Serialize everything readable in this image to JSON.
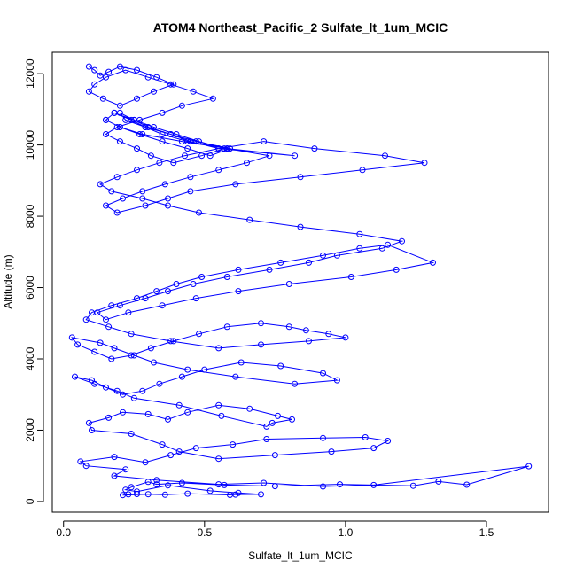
{
  "chart_data": {
    "type": "scatter",
    "title": "ATOM4 Northeast_Pacific_2 Sulfate_lt_1um_MCIC",
    "xlabel": "Sulfate_lt_1um_MCIC",
    "ylabel": "Altitude (m)",
    "xlim": [
      -0.04,
      1.72
    ],
    "ylim": [
      -300,
      12600
    ],
    "xticks": [
      0.0,
      0.5,
      1.0,
      1.5
    ],
    "xtick_labels": [
      "0.0",
      "0.5",
      "1.0",
      "1.5"
    ],
    "yticks": [
      0,
      2000,
      4000,
      6000,
      8000,
      10000,
      12000
    ],
    "ytick_labels": [
      "0",
      "2000",
      "4000",
      "6000",
      "8000",
      "10000",
      "12000"
    ],
    "grid": false,
    "legend": "none",
    "color": "#0000ff",
    "series": [
      {
        "x": [
          0.23,
          0.26,
          0.21,
          0.3,
          0.36,
          0.44,
          0.59,
          0.61,
          0.7,
          0.62,
          0.52,
          0.37,
          0.26,
          0.22,
          0.24,
          0.3,
          0.33,
          0.42,
          0.57,
          0.75,
          0.98,
          1.24,
          1.33,
          1.43,
          1.65,
          1.1,
          0.92,
          0.71,
          0.55,
          0.33,
          0.18,
          0.22,
          0.08,
          0.06,
          0.18,
          0.29,
          0.38,
          0.47,
          0.6,
          0.72,
          0.92,
          1.07,
          1.15,
          1.1,
          0.95,
          0.75,
          0.55,
          0.41,
          0.35,
          0.24,
          0.1,
          0.09,
          0.16,
          0.21,
          0.3,
          0.37,
          0.44,
          0.55,
          0.66,
          0.76,
          0.81,
          0.74,
          0.72,
          0.56,
          0.41,
          0.25,
          0.19,
          0.11,
          0.04,
          0.1,
          0.15,
          0.21,
          0.28,
          0.34,
          0.42,
          0.5,
          0.63,
          0.77,
          0.92,
          0.97,
          0.82,
          0.61,
          0.44,
          0.32,
          0.25,
          0.18,
          0.13,
          0.03,
          0.05,
          0.11,
          0.17,
          0.24,
          0.31,
          0.39,
          0.48,
          0.58,
          0.7,
          0.8,
          0.86,
          0.94,
          1.0,
          0.87,
          0.7,
          0.55,
          0.38,
          0.24,
          0.16,
          0.08,
          0.1,
          0.17,
          0.26,
          0.33,
          0.4,
          0.49,
          0.62,
          0.77,
          0.92,
          1.05,
          1.15,
          1.31,
          1.18,
          1.02,
          0.8,
          0.62,
          0.47,
          0.35,
          0.23,
          0.15,
          0.12,
          0.2,
          0.29,
          0.37,
          0.46,
          0.58,
          0.73,
          0.87,
          0.97,
          1.13,
          1.2,
          1.05,
          0.84,
          0.66,
          0.48,
          0.37,
          0.28,
          0.17,
          0.13,
          0.19,
          0.26,
          0.34,
          0.43,
          0.55,
          0.71,
          0.89,
          1.14,
          1.28,
          1.06,
          0.84,
          0.61,
          0.45,
          0.37,
          0.29,
          0.19,
          0.15,
          0.21,
          0.28,
          0.36,
          0.45,
          0.55,
          0.65,
          0.73,
          0.58,
          0.44,
          0.35,
          0.29,
          0.24,
          0.18,
          0.15,
          0.2,
          0.27,
          0.35,
          0.44,
          0.52,
          0.59,
          0.47,
          0.38,
          0.3,
          0.25,
          0.2,
          0.22,
          0.29,
          0.38,
          0.45,
          0.55,
          0.82,
          0.58,
          0.42,
          0.28,
          0.2,
          0.15,
          0.18,
          0.25,
          0.32,
          0.4,
          0.48,
          0.57,
          0.49,
          0.39,
          0.31,
          0.26,
          0.2,
          0.15,
          0.19,
          0.27,
          0.35,
          0.42,
          0.53,
          0.46,
          0.38,
          0.3,
          0.22,
          0.15,
          0.11,
          0.09,
          0.14,
          0.2,
          0.26,
          0.32,
          0.39,
          0.33,
          0.26,
          0.2,
          0.16,
          0.13,
          0.11,
          0.09
        ],
        "y": [
          200,
          210,
          180,
          205,
          190,
          220,
          185,
          195,
          200,
          240,
          300,
          450,
          280,
          330,
          400,
          550,
          480,
          520,
          460,
          430,
          480,
          440,
          560,
          470,
          990,
          460,
          420,
          520,
          480,
          600,
          720,
          900,
          1000,
          1120,
          1250,
          1100,
          1300,
          1500,
          1600,
          1750,
          1780,
          1800,
          1700,
          1500,
          1400,
          1300,
          1200,
          1400,
          1600,
          1900,
          2000,
          2200,
          2350,
          2500,
          2450,
          2300,
          2500,
          2700,
          2600,
          2400,
          2300,
          2200,
          2100,
          2400,
          2700,
          2900,
          3100,
          3300,
          3500,
          3400,
          3200,
          3000,
          3100,
          3300,
          3500,
          3700,
          3900,
          3800,
          3600,
          3400,
          3300,
          3500,
          3700,
          3900,
          4100,
          4300,
          4450,
          4600,
          4400,
          4200,
          4000,
          4100,
          4300,
          4500,
          4700,
          4900,
          5000,
          4900,
          4800,
          4700,
          4600,
          4500,
          4400,
          4300,
          4500,
          4700,
          4900,
          5100,
          5300,
          5500,
          5700,
          5900,
          6100,
          6300,
          6500,
          6700,
          6900,
          7100,
          7200,
          6700,
          6500,
          6300,
          6100,
          5900,
          5700,
          5500,
          5300,
          5100,
          5300,
          5500,
          5700,
          5900,
          6100,
          6300,
          6500,
          6700,
          6900,
          7100,
          7300,
          7500,
          7700,
          7900,
          8100,
          8300,
          8500,
          8700,
          8900,
          9100,
          9300,
          9500,
          9700,
          9900,
          10100,
          9900,
          9700,
          9500,
          9300,
          9100,
          8900,
          8700,
          8500,
          8300,
          8100,
          8300,
          8500,
          8700,
          8900,
          9100,
          9300,
          9500,
          9700,
          9900,
          10100,
          10300,
          10500,
          10700,
          10900,
          10700,
          10500,
          10300,
          10100,
          9900,
          9700,
          9900,
          10100,
          10300,
          10500,
          10700,
          10900,
          10700,
          10500,
          10300,
          10100,
          9900,
          9700,
          9900,
          10100,
          10300,
          10500,
          10700,
          10900,
          10700,
          10500,
          10300,
          10100,
          9900,
          9700,
          9500,
          9700,
          9900,
          10100,
          10300,
          10500,
          10700,
          10900,
          11100,
          11300,
          11500,
          11700,
          11900,
          12100,
          11900,
          11700,
          11500,
          11300,
          11100,
          11300,
          11500,
          11700,
          11900,
          12100,
          12200,
          12050,
          11950,
          12100,
          12200
        ]
      }
    ]
  }
}
